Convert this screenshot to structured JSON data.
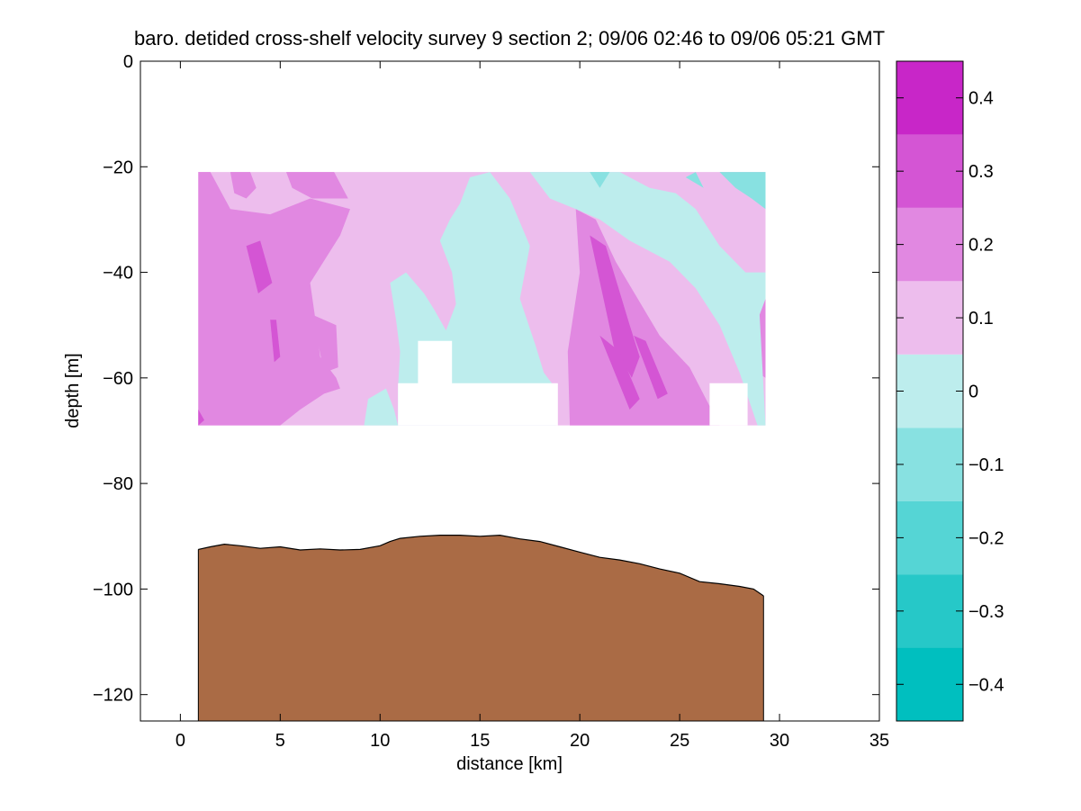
{
  "chart_data": {
    "type": "heatmap",
    "title": "baro. detided cross-shelf velocity survey 9 section 2; 09/06 02:46 to 09/06 05:21 GMT",
    "xlabel": "distance [km]",
    "ylabel": "depth [m]",
    "xlim": [
      -2,
      35
    ],
    "ylim": [
      -125,
      0
    ],
    "xticks": [
      0,
      5,
      10,
      15,
      20,
      25,
      30,
      35
    ],
    "yticks": [
      0,
      -20,
      -40,
      -60,
      -80,
      -100,
      -120
    ],
    "colorbar": {
      "clim": [
        -0.45,
        0.45
      ],
      "levels": [
        -0.45,
        -0.35,
        -0.25,
        -0.15,
        -0.05,
        0.05,
        0.15,
        0.25,
        0.35,
        0.45
      ],
      "colors": [
        "#00BFBF",
        "#26C8C8",
        "#55D5D5",
        "#88E1E1",
        "#BDEDED",
        "#EDBDED",
        "#E188E1",
        "#D455D4",
        "#C826C8",
        "#BF00BF"
      ],
      "ticks": [
        -0.4,
        -0.3,
        -0.2,
        -0.1,
        0,
        0.1,
        0.2,
        0.3,
        0.4
      ]
    },
    "velocity_section": {
      "x_range": [
        0.9,
        29.3
      ],
      "depth_range": [
        -21,
        -69
      ],
      "regions": [
        {
          "level": 0.075,
          "points": [
            [
              0.9,
              -21
            ],
            [
              29.3,
              -21
            ],
            [
              29.3,
              -69
            ],
            [
              0.9,
              -69
            ]
          ]
        },
        {
          "level": 0.175,
          "points": [
            [
              0.9,
              -21
            ],
            [
              1.5,
              -21
            ],
            [
              2.5,
              -28
            ],
            [
              4.5,
              -29
            ],
            [
              6.5,
              -26
            ],
            [
              8.5,
              -28
            ],
            [
              8.0,
              -33
            ],
            [
              6.5,
              -42
            ],
            [
              6.8,
              -50
            ],
            [
              7.0,
              -56
            ],
            [
              7.8,
              -60
            ],
            [
              8.0,
              -62
            ],
            [
              7.2,
              -63
            ],
            [
              6.0,
              -66
            ],
            [
              5.0,
              -69
            ],
            [
              0.9,
              -69
            ]
          ]
        },
        {
          "level": 0.175,
          "points": [
            [
              2.5,
              -21
            ],
            [
              3.5,
              -21
            ],
            [
              3.8,
              -24
            ],
            [
              3.3,
              -26
            ],
            [
              2.7,
              -25
            ]
          ]
        },
        {
          "level": 0.175,
          "points": [
            [
              5.3,
              -21
            ],
            [
              7.7,
              -21
            ],
            [
              8.4,
              -26
            ],
            [
              6.6,
              -26
            ],
            [
              5.6,
              -24
            ]
          ]
        },
        {
          "level": 0.175,
          "points": [
            [
              6.6,
              -48
            ],
            [
              7.8,
              -50
            ],
            [
              7.9,
              -58
            ],
            [
              7.2,
              -59
            ]
          ]
        },
        {
          "level": 0.275,
          "points": [
            [
              3.3,
              -35
            ],
            [
              4.0,
              -34
            ],
            [
              4.6,
              -42
            ],
            [
              3.9,
              -44
            ]
          ]
        },
        {
          "level": 0.275,
          "points": [
            [
              4.5,
              -49
            ],
            [
              4.8,
              -49
            ],
            [
              5.0,
              -56
            ],
            [
              4.7,
              -57
            ]
          ]
        },
        {
          "level": 0.275,
          "points": [
            [
              0.9,
              -66
            ],
            [
              1.2,
              -68
            ],
            [
              0.9,
              -69
            ]
          ]
        },
        {
          "level": 0.175,
          "points": [
            [
              19.8,
              -28
            ],
            [
              20.8,
              -30
            ],
            [
              21.8,
              -38
            ],
            [
              24.0,
              -52
            ],
            [
              25.5,
              -58
            ],
            [
              27.0,
              -69
            ],
            [
              19.5,
              -69
            ],
            [
              19.4,
              -55
            ],
            [
              20.0,
              -40
            ]
          ]
        },
        {
          "level": 0.275,
          "points": [
            [
              20.5,
              -33
            ],
            [
              21.3,
              -35
            ],
            [
              22.5,
              -50
            ],
            [
              23.0,
              -56
            ],
            [
              22.6,
              -60
            ],
            [
              21.7,
              -54
            ]
          ]
        },
        {
          "level": 0.275,
          "points": [
            [
              21.0,
              -52
            ],
            [
              22.0,
              -55
            ],
            [
              23.0,
              -64
            ],
            [
              22.5,
              -66
            ]
          ]
        },
        {
          "level": 0.275,
          "points": [
            [
              22.7,
              -52
            ],
            [
              23.3,
              -53
            ],
            [
              24.4,
              -63
            ],
            [
              23.9,
              -64
            ]
          ]
        },
        {
          "level": 0.175,
          "points": [
            [
              29.0,
              -48
            ],
            [
              29.3,
              -45
            ],
            [
              29.3,
              -60
            ],
            [
              28.9,
              -59
            ]
          ]
        },
        {
          "level": -0.025,
          "points": [
            [
              10.9,
              -62
            ],
            [
              11.0,
              -55
            ],
            [
              10.8,
              -49
            ],
            [
              10.5,
              -42
            ],
            [
              11.3,
              -40
            ],
            [
              12.2,
              -44
            ],
            [
              12.7,
              -47
            ],
            [
              13.3,
              -51
            ],
            [
              13.8,
              -46
            ],
            [
              13.6,
              -40
            ],
            [
              13.0,
              -34
            ],
            [
              13.5,
              -30
            ],
            [
              14.0,
              -27
            ],
            [
              14.5,
              -22
            ],
            [
              15.5,
              -21
            ],
            [
              16.5,
              -26
            ],
            [
              17.5,
              -35
            ],
            [
              17.0,
              -45
            ],
            [
              17.8,
              -54
            ],
            [
              18.2,
              -59
            ],
            [
              18.8,
              -62
            ],
            [
              18.8,
              -69
            ],
            [
              10.9,
              -69
            ]
          ]
        },
        {
          "level": -0.025,
          "points": [
            [
              9.2,
              -69
            ],
            [
              9.4,
              -64
            ],
            [
              10.3,
              -62
            ],
            [
              10.7,
              -66
            ],
            [
              10.9,
              -69
            ]
          ]
        },
        {
          "level": -0.025,
          "points": [
            [
              17.5,
              -21
            ],
            [
              22.0,
              -21
            ],
            [
              23.5,
              -24
            ],
            [
              24.8,
              -25
            ],
            [
              25.8,
              -28
            ],
            [
              27.0,
              -35
            ],
            [
              28.3,
              -40
            ],
            [
              29.3,
              -40
            ],
            [
              29.3,
              -45
            ],
            [
              29.0,
              -48
            ],
            [
              29.2,
              -62
            ],
            [
              29.3,
              -69
            ],
            [
              28.9,
              -69
            ],
            [
              28.0,
              -59
            ],
            [
              27.0,
              -50
            ],
            [
              25.8,
              -43
            ],
            [
              24.5,
              -38
            ],
            [
              22.5,
              -34
            ],
            [
              21.0,
              -30
            ],
            [
              19.8,
              -28
            ],
            [
              18.5,
              -26
            ]
          ]
        },
        {
          "level": -0.125,
          "points": [
            [
              20.5,
              -21
            ],
            [
              21.5,
              -21
            ],
            [
              21.0,
              -24
            ]
          ]
        },
        {
          "level": -0.125,
          "points": [
            [
              27.0,
              -21
            ],
            [
              29.3,
              -21
            ],
            [
              29.3,
              -28
            ],
            [
              28.6,
              -26
            ],
            [
              27.8,
              -24
            ]
          ]
        },
        {
          "level": -0.125,
          "points": [
            [
              25.3,
              -22
            ],
            [
              25.8,
              -21
            ],
            [
              26.2,
              -24
            ]
          ]
        }
      ],
      "masks": [
        {
          "points": [
            [
              11.9,
              -53
            ],
            [
              13.6,
              -53
            ],
            [
              13.6,
              -61
            ],
            [
              18.9,
              -61
            ],
            [
              18.9,
              -69
            ],
            [
              10.9,
              -69
            ],
            [
              10.9,
              -61
            ],
            [
              11.9,
              -61
            ]
          ]
        },
        {
          "points": [
            [
              26.5,
              -61
            ],
            [
              28.4,
              -61
            ],
            [
              28.4,
              -69
            ],
            [
              26.5,
              -69
            ]
          ]
        }
      ]
    },
    "bathymetry": {
      "x": [
        0.9,
        1.5,
        2.2,
        3.0,
        4.0,
        5.0,
        6.0,
        7.0,
        8.0,
        9.0,
        10.0,
        10.5,
        11.0,
        12.0,
        13.0,
        14.0,
        15.0,
        16.0,
        17.0,
        18.0,
        19.0,
        20.0,
        21.0,
        22.0,
        23.0,
        24.0,
        25.0,
        26.0,
        27.0,
        28.0,
        28.7,
        29.2
      ],
      "depth": [
        -92.5,
        -92.0,
        -91.5,
        -91.8,
        -92.3,
        -92.0,
        -92.6,
        -92.4,
        -92.6,
        -92.5,
        -91.8,
        -91.0,
        -90.4,
        -90.0,
        -89.8,
        -89.8,
        -90.0,
        -89.8,
        -90.5,
        -91.0,
        -92.0,
        -93.0,
        -94.0,
        -94.5,
        -95.2,
        -96.2,
        -97.0,
        -98.6,
        -99.0,
        -99.5,
        -100.0,
        -101.3
      ],
      "color": "#AA6B45"
    }
  }
}
